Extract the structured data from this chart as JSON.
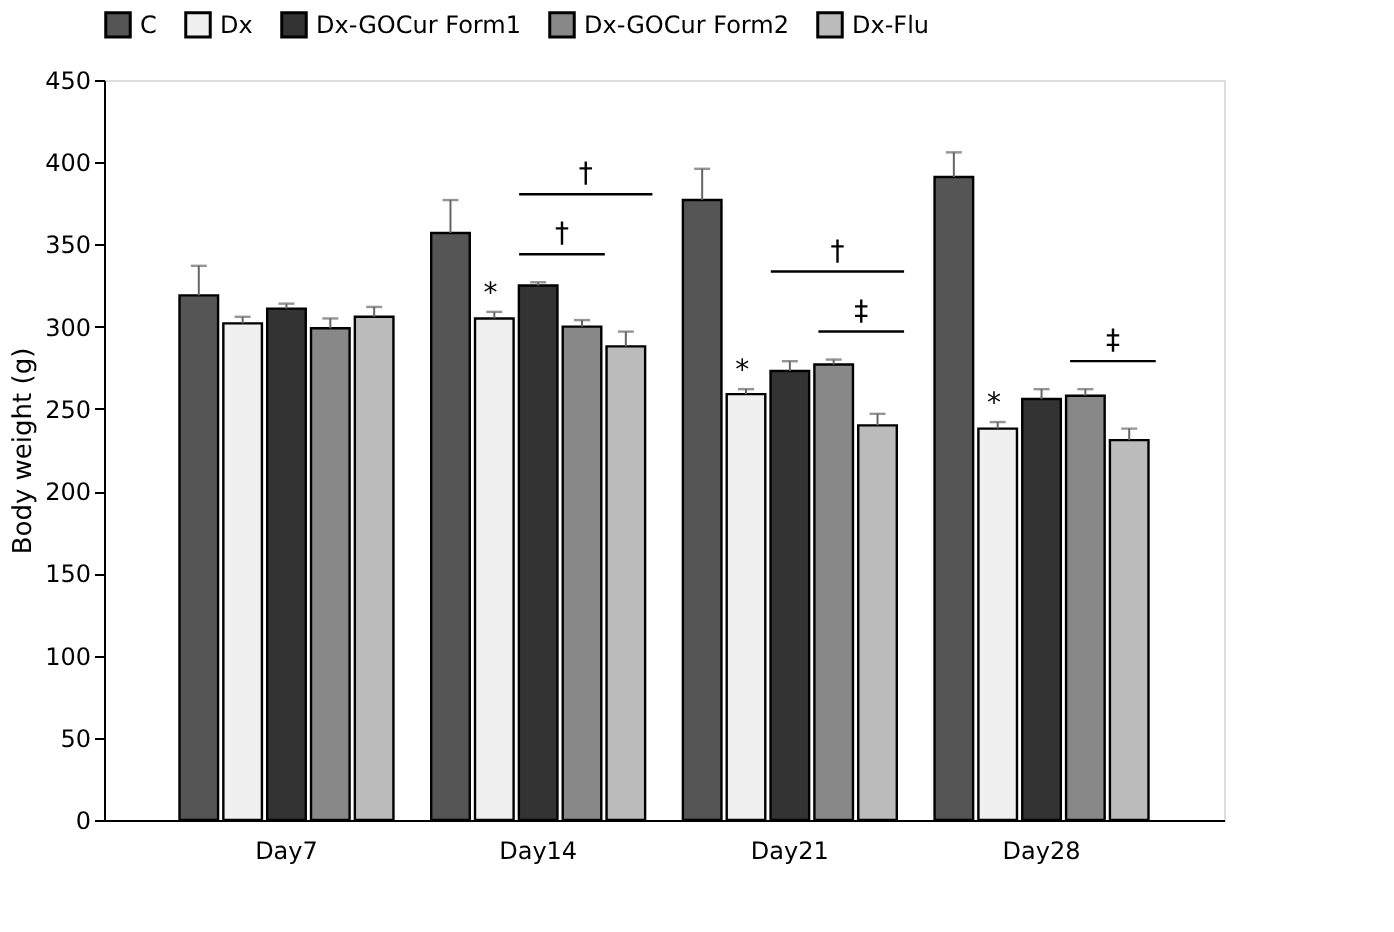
{
  "chart_data": {
    "type": "bar",
    "ylabel": "Body weight (g)",
    "categories": [
      "Day7",
      "Day14",
      "Day21",
      "Day28"
    ],
    "series": [
      {
        "name": "C",
        "color": "#555555",
        "values": [
          319,
          357,
          377,
          391
        ],
        "errors": [
          18,
          20,
          19,
          15
        ]
      },
      {
        "name": "Dx",
        "color": "#f0f0f0",
        "values": [
          302,
          305,
          259,
          238
        ],
        "errors": [
          4,
          4,
          3,
          4
        ]
      },
      {
        "name": "Dx-GOCur Form1",
        "color": "#333333",
        "values": [
          311,
          325,
          273,
          256
        ],
        "errors": [
          3,
          2,
          6,
          6
        ]
      },
      {
        "name": "Dx-GOCur Form2",
        "color": "#888888",
        "values": [
          299,
          300,
          277,
          258
        ],
        "errors": [
          6,
          4,
          3,
          4
        ]
      },
      {
        "name": "Dx-Flu",
        "color": "#bbbbbb",
        "values": [
          306,
          288,
          240,
          231
        ],
        "errors": [
          6,
          9,
          7,
          7
        ]
      }
    ],
    "ylim": [
      0,
      450
    ],
    "yticks": [
      0,
      50,
      100,
      150,
      200,
      250,
      300,
      350,
      400,
      450
    ],
    "grid": false,
    "legend": "top",
    "annotations": [
      "*",
      "*",
      "*",
      "†",
      "†",
      "†",
      "‡",
      "‡"
    ]
  }
}
